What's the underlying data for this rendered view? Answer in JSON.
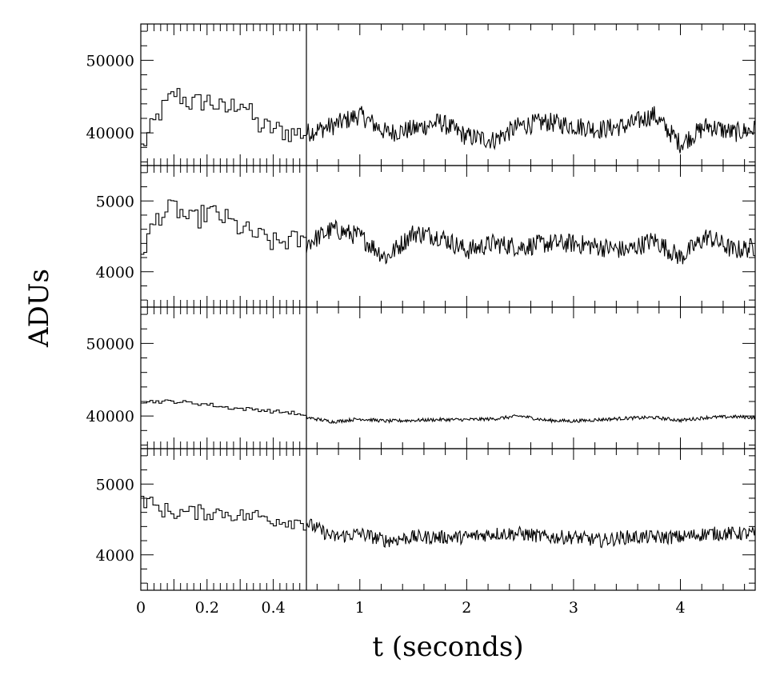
{
  "chart_data": {
    "type": "line",
    "xlabel": "t (seconds)",
    "ylabel": "ADUs",
    "x_axis": {
      "break_at": 0.5,
      "left_segment_range": [
        0,
        0.5
      ],
      "right_segment_range": [
        0.5,
        4.7
      ],
      "tick_labels": [
        "0",
        "0.2",
        "0.4",
        "1",
        "2",
        "3",
        "4"
      ],
      "tick_values": [
        0,
        0.2,
        0.4,
        1,
        2,
        3,
        4
      ]
    },
    "vertical_marker_x": 0.5,
    "panels": [
      {
        "ylim": [
          35500,
          55000
        ],
        "yticks": [
          40000,
          50000
        ],
        "ytick_labels": [
          "40000",
          "50000"
        ],
        "series": {
          "x": [
            0,
            0.05,
            0.1,
            0.15,
            0.2,
            0.25,
            0.3,
            0.35,
            0.4,
            0.45,
            0.5,
            0.75,
            1.0,
            1.25,
            1.5,
            1.75,
            2.0,
            2.25,
            2.5,
            2.75,
            3.0,
            3.25,
            3.5,
            3.75,
            4.0,
            4.25,
            4.5,
            4.7
          ],
          "y": [
            38000,
            42500,
            45500,
            44000,
            44500,
            43000,
            44500,
            41000,
            40500,
            40000,
            40000,
            41000,
            42500,
            40000,
            40500,
            41500,
            39500,
            39000,
            41000,
            41500,
            41000,
            40500,
            41000,
            42500,
            38500,
            41000,
            40000,
            40500
          ]
        }
      },
      {
        "ylim": [
          3500,
          5500
        ],
        "yticks": [
          4000,
          5000
        ],
        "ytick_labels": [
          "4000",
          "5000"
        ],
        "series": {
          "x": [
            0,
            0.05,
            0.1,
            0.15,
            0.2,
            0.25,
            0.3,
            0.35,
            0.4,
            0.45,
            0.5,
            0.75,
            1.0,
            1.25,
            1.5,
            1.75,
            2.0,
            2.25,
            2.5,
            2.75,
            3.0,
            3.25,
            3.5,
            3.75,
            4.0,
            4.25,
            4.5,
            4.7
          ],
          "y": [
            4300,
            4800,
            4900,
            4700,
            4850,
            4750,
            4600,
            4500,
            4400,
            4450,
            4400,
            4600,
            4500,
            4200,
            4550,
            4500,
            4300,
            4400,
            4350,
            4400,
            4400,
            4350,
            4300,
            4450,
            4200,
            4500,
            4300,
            4350
          ]
        }
      },
      {
        "ylim": [
          35500,
          55000
        ],
        "yticks": [
          40000,
          50000
        ],
        "ytick_labels": [
          "40000",
          "50000"
        ],
        "series": {
          "x": [
            0,
            0.05,
            0.1,
            0.15,
            0.2,
            0.25,
            0.3,
            0.35,
            0.4,
            0.45,
            0.5,
            0.75,
            1.0,
            1.25,
            1.5,
            1.75,
            2.0,
            2.25,
            2.5,
            2.75,
            3.0,
            3.25,
            3.5,
            3.75,
            4.0,
            4.25,
            4.5,
            4.7
          ],
          "y": [
            42000,
            42000,
            42000,
            41800,
            41600,
            41200,
            41000,
            40900,
            40600,
            40500,
            39800,
            39200,
            39600,
            39300,
            39400,
            39500,
            39500,
            39600,
            40000,
            39400,
            39300,
            39500,
            39700,
            39800,
            39400,
            39800,
            39900,
            39800
          ]
        }
      },
      {
        "ylim": [
          3500,
          5500
        ],
        "yticks": [
          4000,
          5000
        ],
        "ytick_labels": [
          "4000",
          "5000"
        ],
        "series": {
          "x": [
            0,
            0.05,
            0.1,
            0.15,
            0.2,
            0.25,
            0.3,
            0.35,
            0.4,
            0.45,
            0.5,
            0.75,
            1.0,
            1.25,
            1.5,
            1.75,
            2.0,
            2.25,
            2.5,
            2.75,
            3.0,
            3.25,
            3.5,
            3.75,
            4.0,
            4.25,
            4.5,
            4.7
          ],
          "y": [
            4800,
            4650,
            4600,
            4600,
            4600,
            4600,
            4550,
            4550,
            4500,
            4480,
            4450,
            4250,
            4300,
            4200,
            4250,
            4250,
            4250,
            4300,
            4300,
            4250,
            4250,
            4200,
            4250,
            4250,
            4250,
            4300,
            4300,
            4300
          ]
        }
      }
    ],
    "grid": false,
    "legend": "none"
  }
}
